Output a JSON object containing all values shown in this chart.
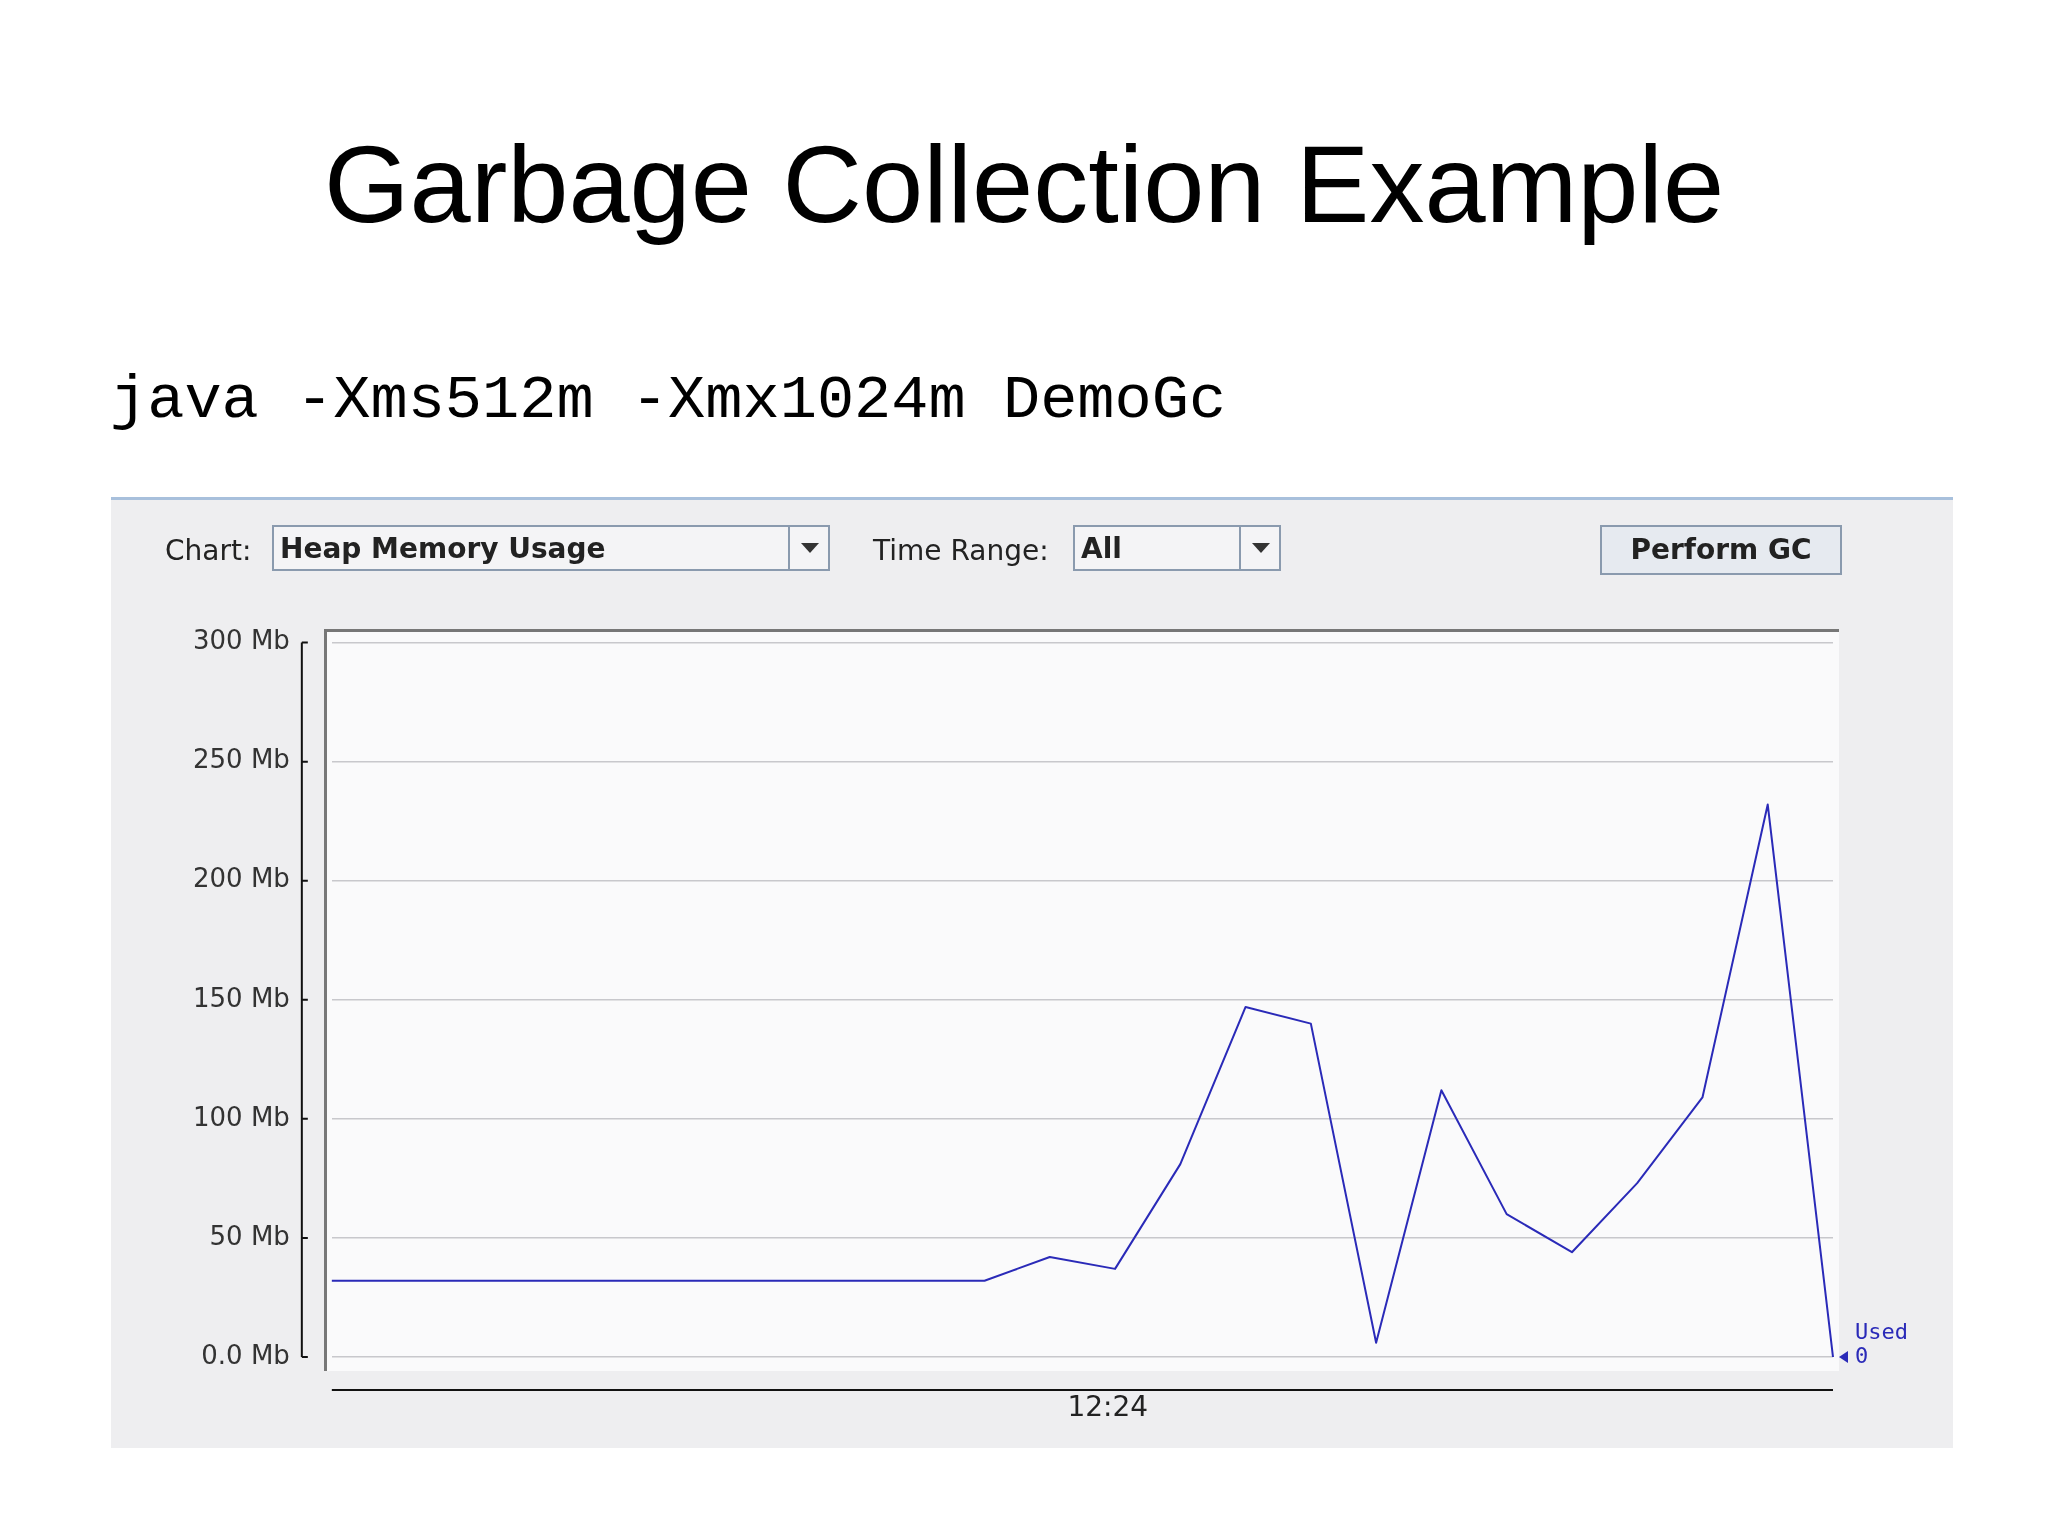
{
  "chart_data": {
    "type": "line",
    "title": "Garbage Collection Example",
    "subtitle": "java -Xms512m -Xmx1024m DemoGc",
    "annotations": [
      "Chart:",
      "Heap Memory Usage",
      "Time Range:",
      "All",
      "Perform GC",
      "12:24"
    ],
    "categories": [
      null,
      null,
      null,
      null,
      null,
      null,
      null,
      null,
      null,
      null,
      null,
      null,
      null,
      null,
      null,
      null,
      null,
      null,
      null,
      null,
      null,
      null,
      null,
      null
    ],
    "series": [
      {
        "name": "Used",
        "color": "#2a2ab8",
        "values": [
          32,
          32,
          32,
          32,
          32,
          32,
          32,
          32,
          32,
          32,
          32,
          42,
          37,
          81,
          147,
          140,
          6,
          112,
          60,
          44,
          73,
          109,
          232,
          0
        ],
        "value_labels": [
          null,
          null,
          null,
          null,
          null,
          null,
          null,
          null,
          null,
          null,
          null,
          null,
          null,
          null,
          null,
          null,
          null,
          null,
          null,
          null,
          null,
          null,
          null,
          "0"
        ]
      }
    ],
    "ylim": [
      0,
      300
    ],
    "yticks": [
      {
        "value": 0,
        "label": "0.0 Mb"
      },
      {
        "value": 50,
        "label": "50 Mb"
      },
      {
        "value": 100,
        "label": "100 Mb"
      },
      {
        "value": 150,
        "label": "150 Mb"
      },
      {
        "value": 200,
        "label": "200 Mb"
      },
      {
        "value": 250,
        "label": "250 Mb"
      },
      {
        "value": 300,
        "label": "300 Mb"
      }
    ],
    "grid": "y",
    "legend": "right",
    "marker": "none",
    "line_style": "solid"
  }
}
